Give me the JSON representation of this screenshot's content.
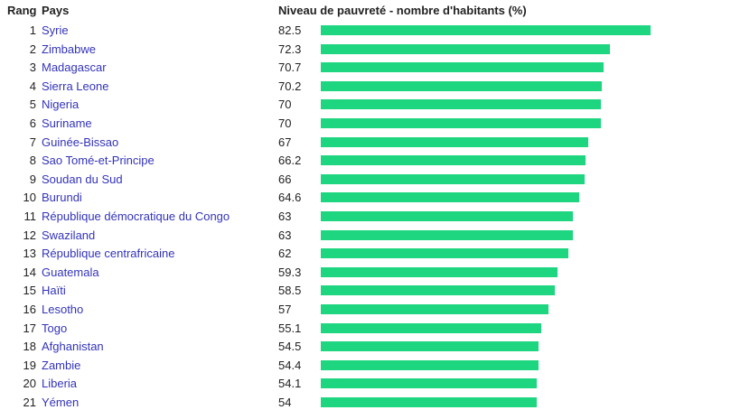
{
  "header": {
    "rank": "Rang",
    "country": "Pays",
    "value": "Niveau de pauvreté - nombre d'habitants (%)"
  },
  "bar_color": "#1fd680",
  "rows": [
    {
      "rank": 1,
      "country": "Syrie",
      "value": 82.5
    },
    {
      "rank": 2,
      "country": "Zimbabwe",
      "value": 72.3
    },
    {
      "rank": 3,
      "country": "Madagascar",
      "value": 70.7
    },
    {
      "rank": 4,
      "country": "Sierra Leone",
      "value": 70.2
    },
    {
      "rank": 5,
      "country": "Nigeria",
      "value": 70
    },
    {
      "rank": 6,
      "country": "Suriname",
      "value": 70
    },
    {
      "rank": 7,
      "country": "Guinée-Bissao",
      "value": 67
    },
    {
      "rank": 8,
      "country": "Sao Tomé-et-Principe",
      "value": 66.2
    },
    {
      "rank": 9,
      "country": "Soudan du Sud",
      "value": 66
    },
    {
      "rank": 10,
      "country": "Burundi",
      "value": 64.6
    },
    {
      "rank": 11,
      "country": "République démocratique du Congo",
      "value": 63
    },
    {
      "rank": 12,
      "country": "Swaziland",
      "value": 63
    },
    {
      "rank": 13,
      "country": "République centrafricaine",
      "value": 62
    },
    {
      "rank": 14,
      "country": "Guatemala",
      "value": 59.3
    },
    {
      "rank": 15,
      "country": "Haïti",
      "value": 58.5
    },
    {
      "rank": 16,
      "country": "Lesotho",
      "value": 57
    },
    {
      "rank": 17,
      "country": "Togo",
      "value": 55.1
    },
    {
      "rank": 18,
      "country": "Afghanistan",
      "value": 54.5
    },
    {
      "rank": 19,
      "country": "Zambie",
      "value": 54.4
    },
    {
      "rank": 20,
      "country": "Liberia",
      "value": 54.1
    },
    {
      "rank": 21,
      "country": "Yémen",
      "value": 54
    }
  ]
}
